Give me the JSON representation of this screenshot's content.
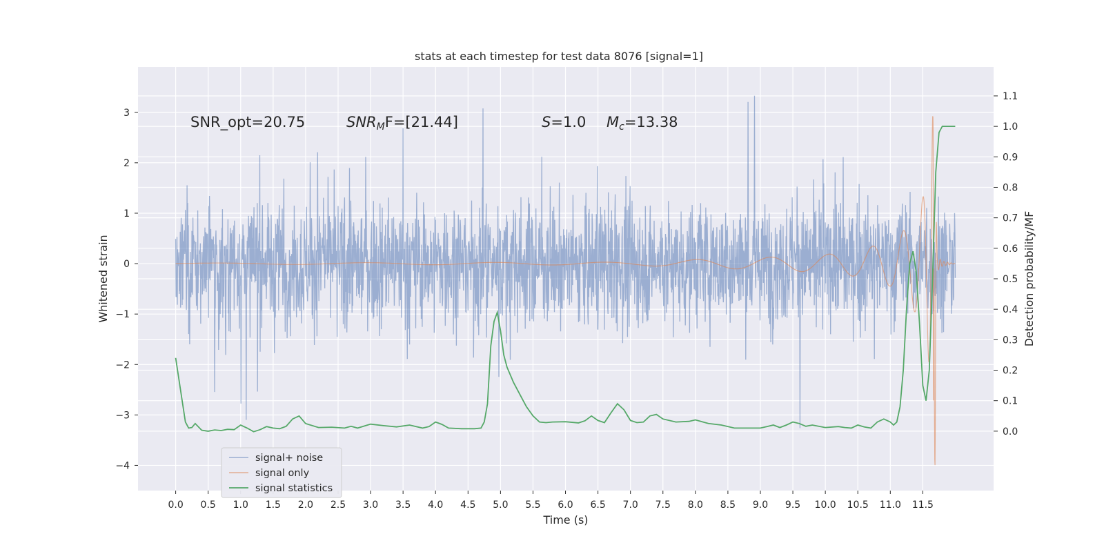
{
  "chart_data": {
    "type": "line",
    "title": "stats at each timestep for test data 8076 [signal=1]",
    "xlabel": "Time (s)",
    "ylabel": "Whitened strain",
    "y2label": "Detection probability/MF",
    "xlim": [
      -0.58,
      12.59
    ],
    "ylim": [
      -4.5,
      3.9
    ],
    "y2lim": [
      -0.195,
      1.195
    ],
    "x_ticks": [
      0.0,
      0.5,
      1.0,
      1.5,
      2.0,
      2.5,
      3.0,
      3.5,
      4.0,
      4.5,
      5.0,
      5.5,
      6.0,
      6.5,
      7.0,
      7.5,
      8.0,
      8.5,
      9.0,
      9.5,
      10.0,
      10.5,
      11.0,
      11.5
    ],
    "x_tick_labels": [
      "0.0",
      "0.5",
      "1.0",
      "1.5",
      "2.0",
      "2.5",
      "3.0",
      "3.5",
      "4.0",
      "4.5",
      "5.0",
      "5.5",
      "6.0",
      "6.5",
      "7.0",
      "7.5",
      "8.0",
      "8.5",
      "9.0",
      "9.5",
      "10.0",
      "10.5",
      "11.0",
      "11.5"
    ],
    "y_ticks": [
      3,
      2,
      1,
      0,
      -1,
      -2,
      -3,
      -4
    ],
    "y_tick_labels": [
      "3",
      "2",
      "1",
      "0",
      "−1",
      "−2",
      "−3",
      "−4"
    ],
    "y2_ticks": [
      1.1,
      1.0,
      0.9,
      0.8,
      0.7,
      0.6,
      0.5,
      0.4,
      0.3,
      0.2,
      0.1,
      0.0
    ],
    "y2_tick_labels": [
      "1.1",
      "1.0",
      "0.9",
      "0.8",
      "0.7",
      "0.6",
      "0.5",
      "0.4",
      "0.3",
      "0.2",
      "0.1",
      "0.0"
    ],
    "grid": true,
    "legend_position": "lower-left",
    "annotations": {
      "snr_opt": "SNR_opt=20.75",
      "snr_mf_main": "SNR",
      "snr_mf_sub": "M",
      "snr_mf_rest": "F=[21.44]",
      "s_italic": "S",
      "s_value": "=1.0",
      "mc_main": "M",
      "mc_sub": "c",
      "mc_value": "=13.38"
    },
    "series": [
      {
        "name": "signal+ noise",
        "color": "#4c72b0",
        "description_values": "noise band",
        "x_range": [
          0.0,
          12.0
        ],
        "y_typical_range": [
          -1.6,
          1.6
        ],
        "y_extremes": [
          -4.1,
          3.6
        ],
        "axis": "left"
      },
      {
        "name": "signal only",
        "color": "#dd8452",
        "axis": "left",
        "x": [
          0.0,
          7.0,
          8.0,
          9.0,
          10.0,
          10.5,
          11.0,
          11.3,
          11.5,
          11.6,
          11.65,
          11.68,
          11.72,
          11.8,
          12.0
        ],
        "envelope": [
          0.01,
          0.03,
          0.08,
          0.12,
          0.18,
          0.26,
          0.45,
          0.75,
          1.3,
          2.0,
          2.9,
          3.3,
          0.15,
          0.05,
          0.0
        ],
        "chirp_min": -4.05
      },
      {
        "name": "signal statistics",
        "color": "#55a868",
        "axis": "right",
        "x": [
          0.0,
          0.05,
          0.1,
          0.15,
          0.2,
          0.25,
          0.3,
          0.4,
          0.5,
          0.6,
          0.7,
          0.8,
          0.9,
          1.0,
          1.1,
          1.2,
          1.3,
          1.4,
          1.5,
          1.6,
          1.7,
          1.8,
          1.9,
          2.0,
          2.2,
          2.4,
          2.6,
          2.7,
          2.8,
          3.0,
          3.2,
          3.4,
          3.6,
          3.8,
          3.9,
          4.0,
          4.1,
          4.2,
          4.4,
          4.6,
          4.7,
          4.75,
          4.8,
          4.85,
          4.9,
          4.95,
          5.0,
          5.05,
          5.1,
          5.2,
          5.3,
          5.4,
          5.5,
          5.6,
          5.7,
          5.8,
          6.0,
          6.2,
          6.3,
          6.4,
          6.5,
          6.6,
          6.7,
          6.8,
          6.9,
          7.0,
          7.1,
          7.2,
          7.3,
          7.4,
          7.5,
          7.7,
          7.9,
          8.0,
          8.2,
          8.4,
          8.6,
          8.8,
          9.0,
          9.1,
          9.2,
          9.3,
          9.4,
          9.5,
          9.6,
          9.7,
          9.8,
          10.0,
          10.2,
          10.3,
          10.4,
          10.5,
          10.6,
          10.7,
          10.8,
          10.9,
          11.0,
          11.05,
          11.1,
          11.15,
          11.2,
          11.25,
          11.3,
          11.35,
          11.4,
          11.45,
          11.5,
          11.55,
          11.6,
          11.65,
          11.7,
          11.75,
          11.8,
          11.9,
          12.0
        ],
        "values": [
          0.24,
          0.17,
          0.1,
          0.03,
          0.01,
          0.012,
          0.025,
          0.003,
          0.0,
          0.004,
          0.002,
          0.006,
          0.005,
          0.02,
          0.01,
          -0.002,
          0.005,
          0.015,
          0.01,
          0.008,
          0.016,
          0.04,
          0.05,
          0.025,
          0.012,
          0.013,
          0.01,
          0.016,
          0.01,
          0.023,
          0.018,
          0.014,
          0.02,
          0.01,
          0.015,
          0.03,
          0.022,
          0.01,
          0.008,
          0.008,
          0.01,
          0.03,
          0.09,
          0.28,
          0.36,
          0.39,
          0.33,
          0.25,
          0.21,
          0.16,
          0.12,
          0.08,
          0.05,
          0.03,
          0.028,
          0.03,
          0.031,
          0.027,
          0.034,
          0.05,
          0.035,
          0.028,
          0.06,
          0.09,
          0.07,
          0.035,
          0.028,
          0.03,
          0.05,
          0.055,
          0.04,
          0.03,
          0.032,
          0.037,
          0.025,
          0.02,
          0.01,
          0.01,
          0.01,
          0.015,
          0.02,
          0.012,
          0.02,
          0.03,
          0.025,
          0.016,
          0.02,
          0.012,
          0.015,
          0.012,
          0.01,
          0.02,
          0.014,
          0.01,
          0.03,
          0.04,
          0.03,
          0.02,
          0.03,
          0.08,
          0.2,
          0.4,
          0.55,
          0.59,
          0.52,
          0.35,
          0.15,
          0.1,
          0.2,
          0.5,
          0.85,
          0.98,
          1.0,
          1.0,
          1.0
        ]
      }
    ]
  }
}
